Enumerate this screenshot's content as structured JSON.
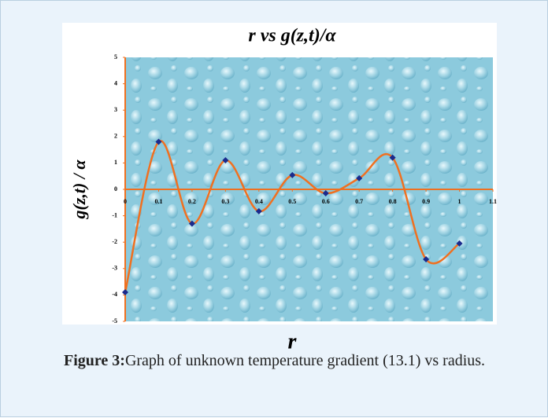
{
  "chart_data": {
    "type": "line",
    "title": "r vs g(z,t)/α",
    "x_label": "r",
    "y_label": "g(z,t) / α",
    "x": [
      0,
      0.1,
      0.2,
      0.3,
      0.4,
      0.5,
      0.6,
      0.7,
      0.8,
      0.9,
      1
    ],
    "values": [
      -3.9,
      1.8,
      -1.3,
      1.1,
      -0.83,
      0.54,
      -0.15,
      0.42,
      1.2,
      -2.65,
      -2.05
    ],
    "color": "#f07020",
    "marker_color": "#1a2a8c",
    "xlim": [
      0,
      1.1
    ],
    "xticks": [
      0,
      0.1,
      0.2,
      0.3,
      0.4,
      0.5,
      0.6,
      0.7,
      0.8,
      0.9,
      1,
      1.1
    ],
    "ylim": [
      -5,
      5
    ],
    "yticks": [
      -5,
      -4,
      -3,
      -2,
      -1,
      0,
      1,
      2,
      3,
      4,
      5
    ]
  },
  "caption": {
    "label": "Figure 3:",
    "text": "Graph of unknown temperature gradient (13.1) vs radius."
  }
}
